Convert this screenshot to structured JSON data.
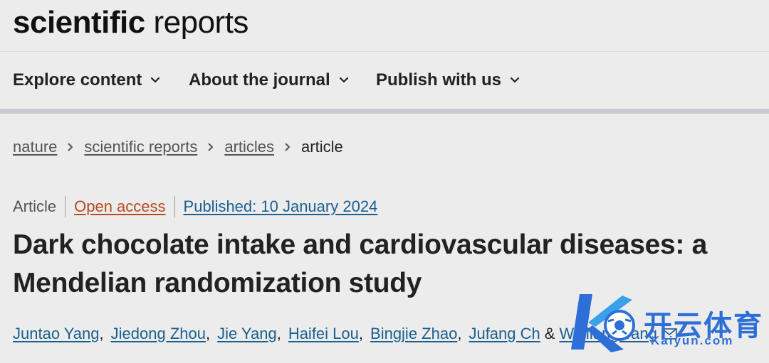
{
  "header": {
    "logo_bold": "scientific",
    "logo_light": "reports"
  },
  "nav": {
    "items": [
      {
        "label": "Explore content"
      },
      {
        "label": "About the journal"
      },
      {
        "label": "Publish with us"
      }
    ]
  },
  "breadcrumb": {
    "items": [
      "nature",
      "scientific reports",
      "articles"
    ],
    "current": "article",
    "separator": ">"
  },
  "article": {
    "type": "Article",
    "access": "Open access",
    "published": "Published: 10 January 2024",
    "title_line1": "Dark chocolate intake and cardiovascular diseases: a",
    "title_line2": "Mendelian randomization study",
    "authors": [
      "Juntao Yang",
      "Jiedong Zhou",
      "Jie Yang",
      "Haifei Lou",
      "Bingjie Zhao",
      "Jufang Ch"
    ],
    "ampersand": "&",
    "last_author": "Weiliang Tang"
  },
  "watermark": {
    "brand": "开云体育",
    "url": "Kaiyun.com"
  },
  "colors": {
    "background": "#ececec",
    "link_blue": "#1a5f8f",
    "open_access": "#b54a22",
    "nav_rule": "#c7ccd3",
    "watermark": "#2d6fd6"
  },
  "icons": [
    "chevron-down-icon",
    "chevron-right-icon",
    "mail-icon"
  ]
}
